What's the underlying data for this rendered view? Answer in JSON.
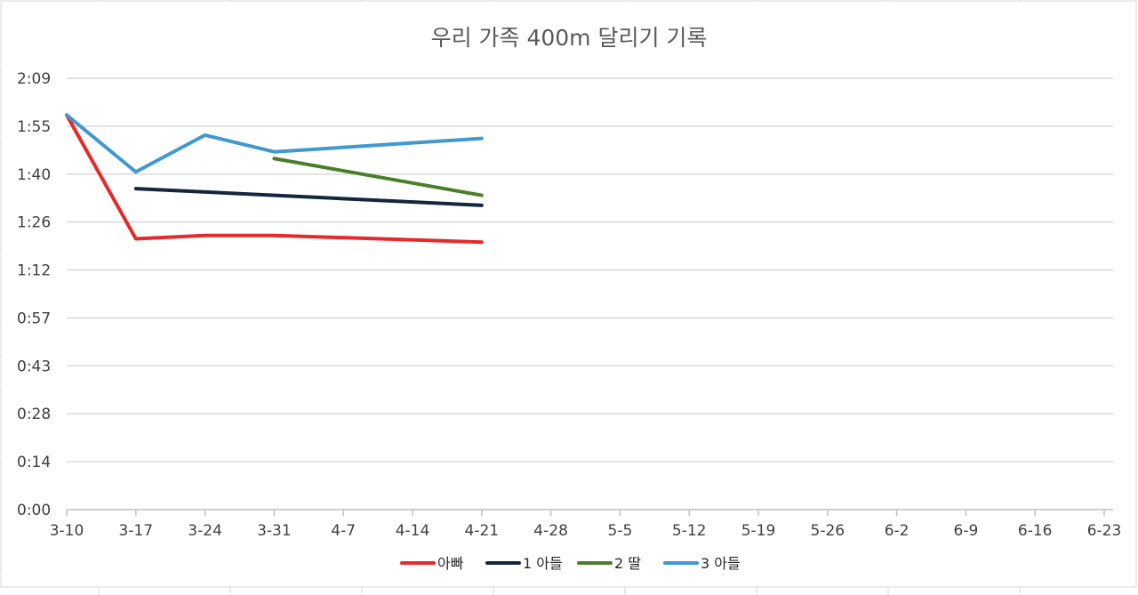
{
  "chart_data": {
    "type": "line",
    "title": "우리 가족 400m 달리기 기록",
    "xlabel": "",
    "ylabel": "",
    "x": [
      "3-10",
      "3-17",
      "3-24",
      "3-31",
      "4-7",
      "4-14",
      "4-21",
      "4-28",
      "5-5",
      "5-12",
      "5-19",
      "5-26",
      "6-2",
      "6-9",
      "6-16",
      "6-23"
    ],
    "y_ticks": [
      "0:00",
      "0:14",
      "0:28",
      "0:43",
      "0:57",
      "1:12",
      "1:26",
      "1:40",
      "1:55",
      "2:09"
    ],
    "ylim_seconds": [
      0,
      129
    ],
    "grid": true,
    "legend_position": "bottom",
    "series": [
      {
        "name": "아빠",
        "color": "#e8292a",
        "values_seconds": [
          118,
          81,
          82,
          82,
          null,
          null,
          80
        ]
      },
      {
        "name": "1 아들",
        "color": "#13263b",
        "values_seconds": [
          null,
          96,
          null,
          null,
          null,
          null,
          91
        ]
      },
      {
        "name": "2 딸",
        "color": "#4a7f2a",
        "values_seconds": [
          null,
          null,
          null,
          105,
          null,
          null,
          94
        ]
      },
      {
        "name": "3 아들",
        "color": "#4099cf",
        "values_seconds": [
          118,
          101,
          112,
          107,
          null,
          null,
          111
        ]
      }
    ]
  }
}
